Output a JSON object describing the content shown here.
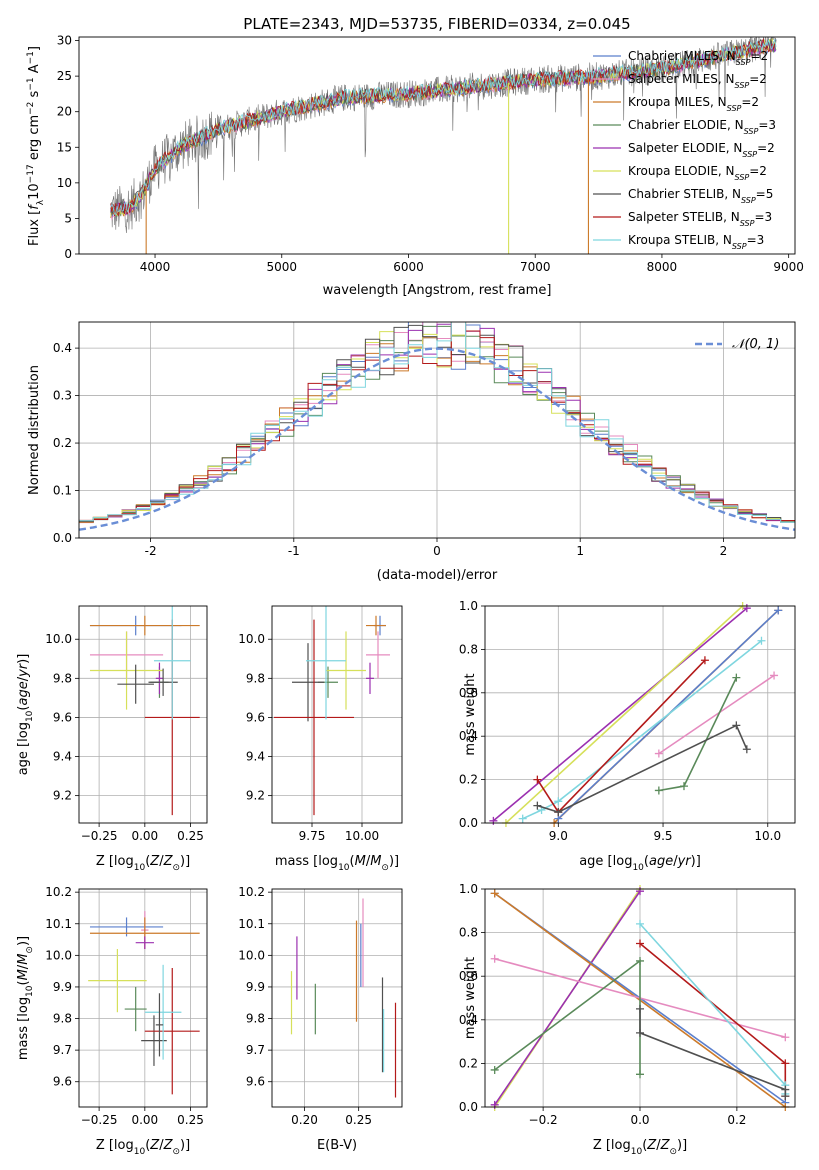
{
  "figure": {
    "title": "PLATE=2343, MJD=53735, FIBERID=0334, z=0.045"
  },
  "colors": {
    "Chabrier MILES": "#5b7fcc",
    "Salpeter MILES": "#e58bbf",
    "Kroupa MILES": "#cc7a2a",
    "Chabrier ELODIE": "#5a8a5a",
    "Salpeter ELODIE": "#9b30b0",
    "Kroupa ELODIE": "#d6e05a",
    "Chabrier STELIB": "#505050",
    "Salpeter STELIB": "#b31a1a",
    "Kroupa STELIB": "#7fd6df",
    "gaussian": "#6a8ed6"
  },
  "chart_data": [
    {
      "id": "spectrum",
      "type": "line",
      "xlabel": "wavelength [Angstrom, rest frame]",
      "ylabel": "Flux [f_λ 10^-17 erg cm^-2 s^-1 A^-1]",
      "xlim": [
        3400,
        9050
      ],
      "ylim": [
        0,
        30.5
      ],
      "xticks": [
        4000,
        5000,
        6000,
        7000,
        8000,
        9000
      ],
      "yticks": [
        0,
        5,
        10,
        15,
        20,
        25,
        30
      ],
      "legend": "top-right",
      "legend_entries": [
        {
          "model": "Chabrier MILES",
          "n": "2"
        },
        {
          "model": "Salpeter MILES",
          "n": "2"
        },
        {
          "model": "Kroupa MILES",
          "n": "2"
        },
        {
          "model": "Chabrier ELODIE",
          "n": "3"
        },
        {
          "model": "Salpeter ELODIE",
          "n": "2"
        },
        {
          "model": "Kroupa ELODIE",
          "n": "2"
        },
        {
          "model": "Chabrier STELIB",
          "n": "5"
        },
        {
          "model": "Salpeter STELIB",
          "n": "3"
        },
        {
          "model": "Kroupa STELIB",
          "n": "3"
        }
      ],
      "continuum": {
        "x": [
          3650,
          3800,
          3900,
          4000,
          4200,
          4500,
          5000,
          5500,
          6000,
          6500,
          7000,
          7500,
          8000,
          8500,
          8900
        ],
        "y": [
          6.0,
          6.5,
          8.5,
          12.0,
          15.0,
          17.5,
          20.0,
          22.0,
          22.5,
          23.5,
          24.5,
          25.0,
          26.0,
          28.0,
          29.5
        ]
      },
      "drops": [
        {
          "x": 3930,
          "model": "Kroupa MILES"
        },
        {
          "x": 6790,
          "model": "Kroupa ELODIE"
        },
        {
          "x": 7420,
          "model": "Kroupa MILES"
        }
      ]
    },
    {
      "id": "residuals",
      "type": "histogram",
      "xlabel": "(data-model)/error",
      "ylabel": "Normed distribution",
      "xlim": [
        -2.5,
        2.5
      ],
      "ylim": [
        0,
        0.455
      ],
      "xticks": [
        -2,
        -1,
        0,
        1,
        2
      ],
      "yticks": [
        0.0,
        0.1,
        0.2,
        0.3,
        0.4
      ],
      "bin_width": 0.1,
      "legend": "top-right",
      "legend_label": "N(0,1)"
    },
    {
      "id": "age-vs-Z",
      "type": "scatter",
      "xlabel": "Z [log10(Z/Z⊙)]",
      "ylabel": "age [log10(age/yr)]",
      "xlim": [
        -0.36,
        0.34
      ],
      "ylim": [
        9.06,
        10.17
      ],
      "xticks": [
        -0.25,
        0.0,
        0.25
      ],
      "xticklabels": [
        "−0.25",
        "0.00",
        "0.25"
      ],
      "yticks": [
        9.2,
        9.4,
        9.6,
        9.8,
        10.0
      ],
      "points": [
        {
          "model": "Chabrier MILES",
          "x": -0.05,
          "xerr": 0.25,
          "y": 10.07,
          "yerr": 0.05
        },
        {
          "model": "Salpeter MILES",
          "x": -0.1,
          "xerr": 0.2,
          "y": 9.92,
          "yerr": 0.12
        },
        {
          "model": "Kroupa MILES",
          "x": 0.0,
          "xerr": 0.3,
          "y": 10.07,
          "yerr": 0.05
        },
        {
          "model": "Chabrier ELODIE",
          "x": 0.08,
          "xerr": 0.05,
          "y": 9.78,
          "yerr": 0.08
        },
        {
          "model": "Salpeter ELODIE",
          "x": 0.08,
          "xerr": 0.02,
          "y": 9.8,
          "yerr": 0.08
        },
        {
          "model": "Kroupa ELODIE",
          "x": -0.1,
          "xerr": 0.2,
          "y": 9.84,
          "yerr": 0.2
        },
        {
          "model": "Chabrier STELIB",
          "x": 0.1,
          "xerr": 0.08,
          "y": 9.78,
          "yerr": 0.07
        },
        {
          "model": "Salpeter STELIB",
          "x": 0.15,
          "xerr": 0.15,
          "y": 9.6,
          "yerr": 0.5
        },
        {
          "model": "Kroupa STELIB",
          "x": 0.15,
          "xerr": 0.1,
          "y": 9.89,
          "yerr": 0.3
        },
        {
          "model": "Chabrier STELIB",
          "x": -0.05,
          "xerr": 0.1,
          "y": 9.77,
          "yerr": 0.1
        }
      ]
    },
    {
      "id": "age-vs-mass",
      "type": "scatter",
      "xlabel": "mass [log10(M/M⊙)]",
      "xlim": [
        9.55,
        10.2
      ],
      "ylim": [
        9.06,
        10.17
      ],
      "xticks": [
        9.75,
        10.0
      ],
      "xticklabels": [
        "9.75",
        "10.00"
      ],
      "yticks": [
        9.2,
        9.4,
        9.6,
        9.8,
        10.0
      ],
      "points": [
        {
          "model": "Chabrier MILES",
          "x": 10.09,
          "xerr": 0.03,
          "y": 10.07,
          "yerr": 0.05
        },
        {
          "model": "Salpeter MILES",
          "x": 10.08,
          "xerr": 0.06,
          "y": 9.92,
          "yerr": 0.12
        },
        {
          "model": "Kroupa MILES",
          "x": 10.07,
          "xerr": 0.05,
          "y": 10.07,
          "yerr": 0.05
        },
        {
          "model": "Chabrier ELODIE",
          "x": 9.83,
          "xerr": 0.05,
          "y": 9.78,
          "yerr": 0.08
        },
        {
          "model": "Salpeter ELODIE",
          "x": 10.04,
          "xerr": 0.02,
          "y": 9.8,
          "yerr": 0.08
        },
        {
          "model": "Kroupa ELODIE",
          "x": 9.92,
          "xerr": 0.1,
          "y": 9.84,
          "yerr": 0.2
        },
        {
          "model": "Chabrier STELIB",
          "x": 9.73,
          "xerr": 0.08,
          "y": 9.78,
          "yerr": 0.2
        },
        {
          "model": "Salpeter STELIB",
          "x": 9.76,
          "xerr": 0.2,
          "y": 9.6,
          "yerr": 0.5
        },
        {
          "model": "Kroupa STELIB",
          "x": 9.82,
          "xerr": 0.1,
          "y": 9.89,
          "yerr": 0.3
        }
      ]
    },
    {
      "id": "weight-vs-age",
      "type": "line",
      "xlabel": "age [log10(age/yr)]",
      "ylabel": "mass weight",
      "xlim": [
        8.65,
        10.13
      ],
      "ylim": [
        0,
        1
      ],
      "xticks": [
        9.0,
        9.5,
        10.0
      ],
      "xticklabels": [
        "9.0",
        "9.5",
        "10.0"
      ],
      "yticks": [
        0.0,
        0.2,
        0.4,
        0.6,
        0.8,
        1.0
      ],
      "series": [
        {
          "model": "Salpeter ELODIE",
          "x": [
            8.69,
            9.9
          ],
          "y": [
            0.01,
            0.99
          ]
        },
        {
          "model": "Kroupa ELODIE",
          "x": [
            8.75,
            9.88
          ],
          "y": [
            0.0,
            1.0
          ]
        },
        {
          "model": "Kroupa MILES",
          "x": [
            8.98,
            10.05
          ],
          "y": [
            0.0,
            0.98
          ]
        },
        {
          "model": "Chabrier MILES",
          "x": [
            9.0,
            10.05
          ],
          "y": [
            0.02,
            0.98
          ]
        },
        {
          "model": "Kroupa STELIB",
          "x": [
            8.83,
            8.92,
            9.0,
            9.97
          ],
          "y": [
            0.02,
            0.06,
            0.1,
            0.84
          ]
        },
        {
          "model": "Salpeter STELIB",
          "x": [
            8.9,
            9.0,
            9.7
          ],
          "y": [
            0.2,
            0.05,
            0.75
          ]
        },
        {
          "model": "Salpeter MILES",
          "x": [
            9.48,
            10.03
          ],
          "y": [
            0.32,
            0.68
          ]
        },
        {
          "model": "Chabrier ELODIE",
          "x": [
            9.48,
            9.6,
            9.85
          ],
          "y": [
            0.15,
            0.17,
            0.67
          ]
        },
        {
          "model": "Chabrier STELIB",
          "x": [
            8.9,
            9.0,
            9.85,
            9.9
          ],
          "y": [
            0.08,
            0.05,
            0.45,
            0.34
          ]
        }
      ]
    },
    {
      "id": "mass-vs-Z",
      "type": "scatter",
      "xlabel": "Z [log10(Z/Z⊙)]",
      "ylabel": "mass [log10(M/M⊙)]",
      "xlim": [
        -0.36,
        0.34
      ],
      "ylim": [
        9.52,
        10.21
      ],
      "xticks": [
        -0.25,
        0.0,
        0.25
      ],
      "xticklabels": [
        "−0.25",
        "0.00",
        "0.25"
      ],
      "yticks": [
        9.6,
        9.7,
        9.8,
        9.9,
        10.0,
        10.1,
        10.2
      ],
      "points": [
        {
          "model": "Chabrier MILES",
          "x": -0.1,
          "xerr": 0.2,
          "y": 10.09,
          "yerr": 0.03
        },
        {
          "model": "Salpeter MILES",
          "x": 0.0,
          "xerr": 0.02,
          "y": 10.08,
          "yerr": 0.06
        },
        {
          "model": "Kroupa MILES",
          "x": 0.0,
          "xerr": 0.3,
          "y": 10.07,
          "yerr": 0.05
        },
        {
          "model": "Chabrier ELODIE",
          "x": -0.05,
          "xerr": 0.06,
          "y": 9.83,
          "yerr": 0.07
        },
        {
          "model": "Salpeter ELODIE",
          "x": 0.0,
          "xerr": 0.05,
          "y": 10.04,
          "yerr": 0.02
        },
        {
          "model": "Kroupa ELODIE",
          "x": -0.15,
          "xerr": 0.16,
          "y": 9.92,
          "yerr": 0.1
        },
        {
          "model": "Chabrier STELIB",
          "x": 0.05,
          "xerr": 0.07,
          "y": 9.73,
          "yerr": 0.08
        },
        {
          "model": "Salpeter STELIB",
          "x": 0.15,
          "xerr": 0.15,
          "y": 9.76,
          "yerr": 0.2
        },
        {
          "model": "Kroupa STELIB",
          "x": 0.1,
          "xerr": 0.1,
          "y": 9.82,
          "yerr": 0.15
        },
        {
          "model": "Chabrier STELIB",
          "x": 0.08,
          "xerr": 0.02,
          "y": 9.78,
          "yerr": 0.1
        }
      ]
    },
    {
      "id": "mass-vs-EBV",
      "type": "scatter",
      "xlabel": "E(B-V)",
      "xlim": [
        0.17,
        0.29
      ],
      "ylim": [
        9.52,
        10.21
      ],
      "xticks": [
        0.2,
        0.25
      ],
      "xticklabels": [
        "0.20",
        "0.25"
      ],
      "yticks": [
        9.6,
        9.7,
        9.8,
        9.9,
        10.0,
        10.1,
        10.2
      ],
      "points": [
        {
          "model": "Kroupa ELODIE",
          "x": 0.188,
          "xerr": 0.0,
          "y": 9.85,
          "yerr": 0.1
        },
        {
          "model": "Salpeter ELODIE",
          "x": 0.193,
          "xerr": 0.0,
          "y": 9.96,
          "yerr": 0.1
        },
        {
          "model": "Chabrier ELODIE",
          "x": 0.21,
          "xerr": 0.0,
          "y": 9.83,
          "yerr": 0.08
        },
        {
          "model": "Kroupa MILES",
          "x": 0.248,
          "xerr": 0.0,
          "y": 9.95,
          "yerr": 0.16
        },
        {
          "model": "Salpeter MILES",
          "x": 0.254,
          "xerr": 0.0,
          "y": 10.04,
          "yerr": 0.14
        },
        {
          "model": "Chabrier MILES",
          "x": 0.252,
          "xerr": 0.0,
          "y": 10.0,
          "yerr": 0.1
        },
        {
          "model": "Chabrier STELIB",
          "x": 0.272,
          "xerr": 0.0,
          "y": 9.78,
          "yerr": 0.15
        },
        {
          "model": "Kroupa STELIB",
          "x": 0.273,
          "xerr": 0.0,
          "y": 9.73,
          "yerr": 0.1
        },
        {
          "model": "Salpeter STELIB",
          "x": 0.284,
          "xerr": 0.0,
          "y": 9.7,
          "yerr": 0.15
        }
      ]
    },
    {
      "id": "weight-vs-Z",
      "type": "line",
      "xlabel": "Z [log10(Z/Z⊙)]",
      "ylabel": "mass weight",
      "xlim": [
        -0.32,
        0.32
      ],
      "ylim": [
        0,
        1
      ],
      "xticks": [
        -0.2,
        0.0,
        0.2
      ],
      "xticklabels": [
        "−0.2",
        "0.0",
        "0.2"
      ],
      "yticks": [
        0.0,
        0.2,
        0.4,
        0.6,
        0.8,
        1.0
      ],
      "series": [
        {
          "model": "Kroupa ELODIE",
          "x": [
            -0.3,
            0.0
          ],
          "y": [
            0.0,
            1.0
          ]
        },
        {
          "model": "Salpeter ELODIE",
          "x": [
            -0.3,
            0.0
          ],
          "y": [
            0.01,
            0.99
          ]
        },
        {
          "model": "Chabrier MILES",
          "x": [
            -0.3,
            0.3
          ],
          "y": [
            0.98,
            0.02
          ]
        },
        {
          "model": "Kroupa MILES",
          "x": [
            -0.3,
            0.3
          ],
          "y": [
            0.98,
            0.0
          ]
        },
        {
          "model": "Salpeter MILES",
          "x": [
            -0.3,
            0.3
          ],
          "y": [
            0.68,
            0.32
          ]
        },
        {
          "model": "Chabrier ELODIE",
          "x": [
            -0.3,
            0.0,
            0.0
          ],
          "y": [
            0.17,
            0.67,
            0.15
          ]
        },
        {
          "model": "Salpeter STELIB",
          "x": [
            0.0,
            0.3,
            0.3
          ],
          "y": [
            0.75,
            0.2,
            0.05
          ]
        },
        {
          "model": "Kroupa STELIB",
          "x": [
            0.0,
            0.3,
            0.3
          ],
          "y": [
            0.84,
            0.1,
            0.06
          ]
        },
        {
          "model": "Chabrier STELIB",
          "x": [
            0.0,
            0.0,
            0.3,
            0.3
          ],
          "y": [
            0.45,
            0.34,
            0.08,
            0.05
          ]
        }
      ]
    }
  ]
}
